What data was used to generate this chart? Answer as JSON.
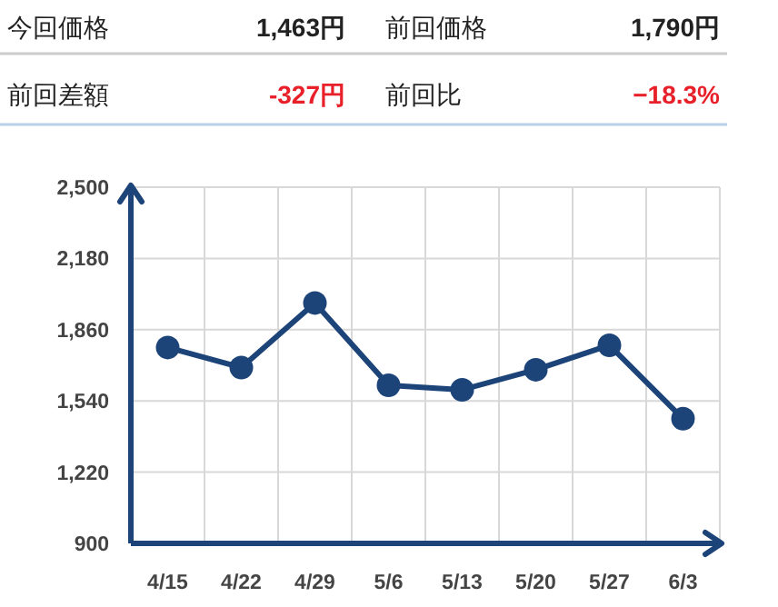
{
  "chart_data": {
    "type": "line",
    "categories": [
      "4/15",
      "4/22",
      "4/29",
      "5/6",
      "5/13",
      "5/20",
      "5/27",
      "6/3"
    ],
    "series": [
      {
        "color": "#1d4479",
        "values": [
          1780,
          1690,
          1980,
          1610,
          1590,
          1680,
          1790,
          1460
        ]
      }
    ],
    "ylim": [
      900,
      2500
    ],
    "yticks": [
      {
        "value": 900,
        "label": "900"
      },
      {
        "value": 1220,
        "label": "1,220"
      },
      {
        "value": 1540,
        "label": "1,540"
      },
      {
        "value": 1860,
        "label": "1,860"
      },
      {
        "value": 2180,
        "label": "2,180"
      },
      {
        "value": 2500,
        "label": "2,500"
      }
    ],
    "grid": true,
    "marker": "circle",
    "line_style": "solid",
    "annotations": [
      "今回価格",
      "1,463円",
      "前回価格",
      "1,790円",
      "前回差額",
      "-327円",
      "前回比",
      "−18.3%"
    ]
  }
}
